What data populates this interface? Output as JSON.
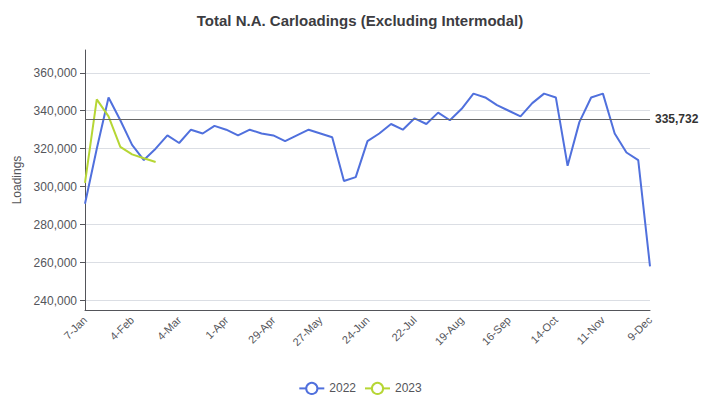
{
  "chart_data": {
    "type": "line",
    "title": "Total N.A. Carloadings (Excluding Intermodal)",
    "ylabel": "Loadings",
    "categories": [
      "7-Jan",
      null,
      null,
      null,
      "4-Feb",
      null,
      null,
      null,
      "4-Mar",
      null,
      null,
      null,
      "1-Apr",
      null,
      null,
      null,
      "29-Apr",
      null,
      null,
      null,
      "27-May",
      null,
      null,
      null,
      "24-Jun",
      null,
      null,
      null,
      "22-Jul",
      null,
      null,
      null,
      "19-Aug",
      null,
      null,
      null,
      "16-Sep",
      null,
      null,
      null,
      "14-Oct",
      null,
      null,
      null,
      "11-Nov",
      null,
      null,
      null,
      "9-Dec"
    ],
    "series": [
      {
        "name": "2022",
        "values": [
          291000,
          320000,
          347000,
          335000,
          322000,
          314000,
          320000,
          327000,
          323000,
          330000,
          328000,
          332000,
          330000,
          327000,
          330000,
          328000,
          327000,
          324000,
          327000,
          330000,
          328000,
          326000,
          303000,
          305000,
          324000,
          328000,
          333000,
          330000,
          336000,
          333000,
          339000,
          335000,
          341000,
          349000,
          347000,
          343000,
          340000,
          337000,
          344000,
          349000,
          347000,
          311000,
          334000,
          347000,
          349000,
          328000,
          318000,
          314000,
          258000
        ]
      },
      {
        "name": "2023",
        "values": [
          302000,
          346000,
          337000,
          321000,
          317000,
          315000,
          313000,
          null,
          null,
          null,
          null,
          null,
          null,
          null,
          null,
          null,
          null,
          null,
          null,
          null,
          null,
          null,
          null,
          null,
          null,
          null,
          null,
          null,
          null,
          null,
          null,
          null,
          null,
          null,
          null,
          null,
          null,
          null,
          null,
          null,
          null,
          null,
          null,
          null,
          null,
          null,
          null,
          null,
          null
        ]
      }
    ],
    "ylim": [
      235000,
      372000
    ],
    "yticks": [
      {
        "value": 240000,
        "label": "240,000"
      },
      {
        "value": 260000,
        "label": "260,000"
      },
      {
        "value": 280000,
        "label": "280,000"
      },
      {
        "value": 300000,
        "label": "300,000"
      },
      {
        "value": 320000,
        "label": "320,000"
      },
      {
        "value": 340000,
        "label": "340,000"
      },
      {
        "value": 360000,
        "label": "360,000"
      }
    ],
    "grid": true,
    "legend": "bottom",
    "reference_line": {
      "value": 335732,
      "label": "335,732"
    }
  }
}
